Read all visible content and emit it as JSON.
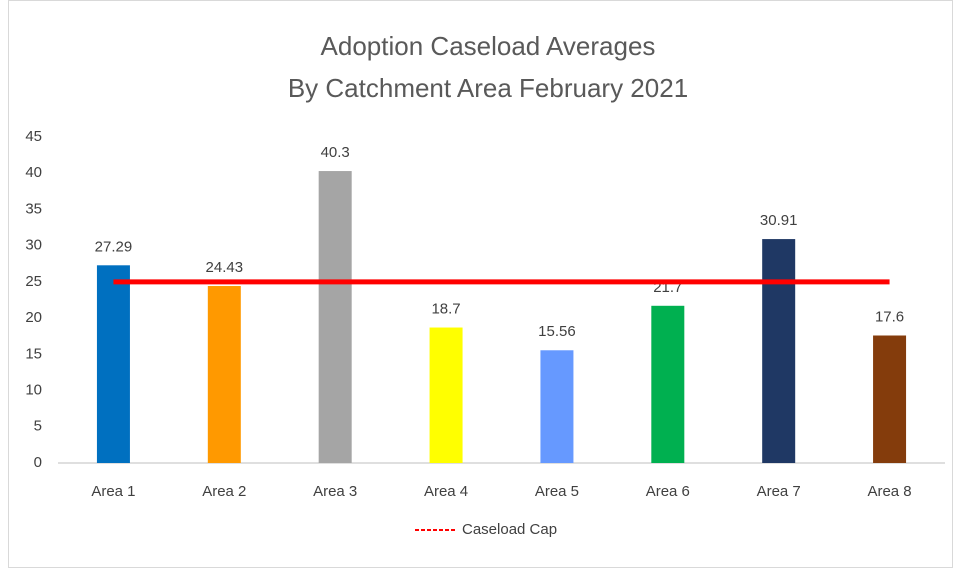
{
  "chart_data": {
    "type": "bar",
    "title": [
      "Adoption Caseload Averages",
      "By Catchment Area February 2021"
    ],
    "categories": [
      "Area 1",
      "Area 2",
      "Area 3",
      "Area 4",
      "Area 5",
      "Area 6",
      "Area 7",
      "Area 8"
    ],
    "series": [
      {
        "type": "bar",
        "colors": [
          "#0070c0",
          "#ff9900",
          "#a5a5a5",
          "#ffff00",
          "#6699ff",
          "#00b050",
          "#1f3864",
          "#843c0c"
        ],
        "values": [
          27.29,
          24.43,
          40.3,
          18.7,
          15.56,
          21.7,
          30.91,
          17.6
        ]
      },
      {
        "type": "line",
        "name": "Caseload Cap",
        "color": "#ff0000",
        "values": [
          25,
          25,
          25,
          25,
          25,
          25,
          25,
          25
        ]
      }
    ],
    "ylim": [
      0,
      45
    ],
    "yticks": [
      0,
      5,
      10,
      15,
      20,
      25,
      30,
      35,
      40,
      45
    ],
    "legend": "bottom"
  }
}
